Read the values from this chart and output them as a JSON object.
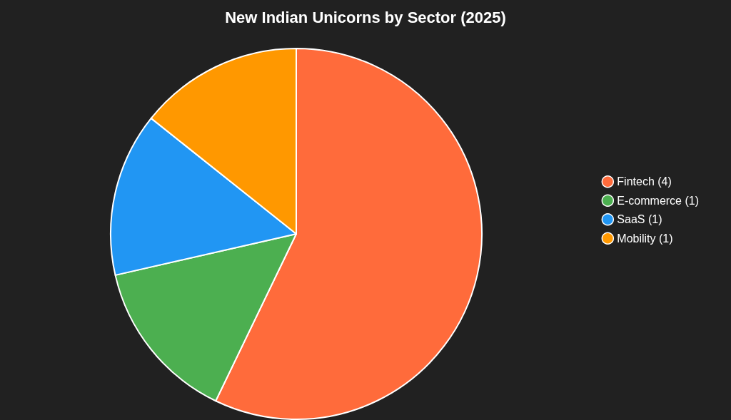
{
  "chart_data": {
    "type": "pie",
    "title": "New Indian Unicorns by Sector (2025)",
    "categories": [
      "Fintech (4)",
      "E-commerce (1)",
      "SaaS (1)",
      "Mobility (1)"
    ],
    "values": [
      4,
      1,
      1,
      1
    ],
    "colors": [
      "#ff6b3b",
      "#4caf50",
      "#2196f3",
      "#ff9800"
    ],
    "legend": "right"
  }
}
